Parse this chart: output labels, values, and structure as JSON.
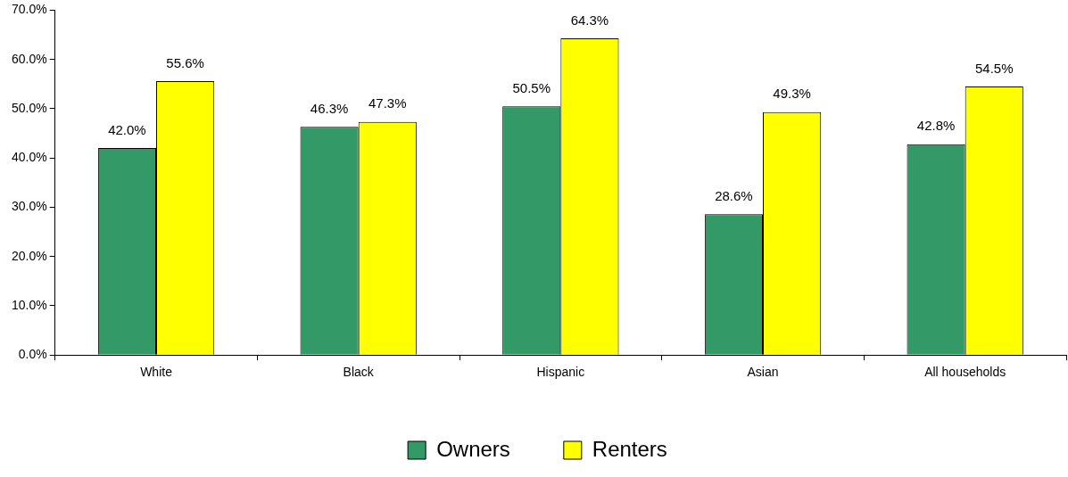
{
  "chart_data": {
    "type": "bar",
    "categories": [
      "White",
      "Black",
      "Hispanic",
      "Asian",
      "All households"
    ],
    "series": [
      {
        "name": "Owners",
        "color": "#339966",
        "values": [
          42.0,
          46.3,
          50.5,
          28.6,
          42.8
        ],
        "value_labels": [
          "42.0%",
          "46.3%",
          "50.5%",
          "28.6%",
          "42.8%"
        ]
      },
      {
        "name": "Renters",
        "color": "#ffff00",
        "values": [
          55.6,
          47.3,
          64.3,
          49.3,
          54.5
        ],
        "value_labels": [
          "55.6%",
          "47.3%",
          "64.3%",
          "49.3%",
          "54.5%"
        ]
      }
    ],
    "ylim": [
      0,
      70
    ],
    "yticks": [
      {
        "value": 0,
        "label": "0.0%"
      },
      {
        "value": 10,
        "label": "10.0%"
      },
      {
        "value": 20,
        "label": "20.0%"
      },
      {
        "value": 30,
        "label": "30.0%"
      },
      {
        "value": 40,
        "label": "40.0%"
      },
      {
        "value": 50,
        "label": "50.0%"
      },
      {
        "value": 60,
        "label": "60.0%"
      },
      {
        "value": 70,
        "label": "70.0%"
      }
    ],
    "grid": false,
    "legend": "bottom"
  }
}
